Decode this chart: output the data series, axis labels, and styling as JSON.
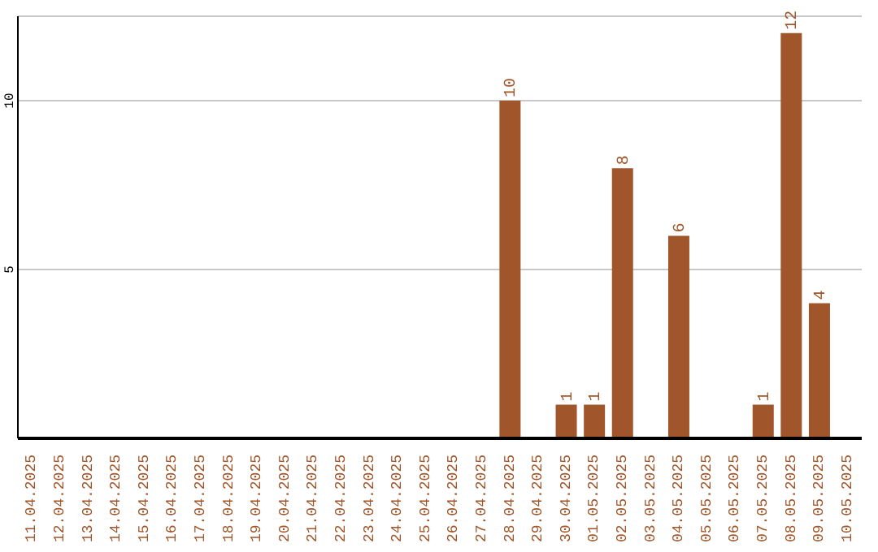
{
  "chart_data": {
    "type": "bar",
    "categories": [
      "11.04.2025",
      "12.04.2025",
      "13.04.2025",
      "14.04.2025",
      "15.04.2025",
      "16.04.2025",
      "17.04.2025",
      "18.04.2025",
      "19.04.2025",
      "20.04.2025",
      "21.04.2025",
      "22.04.2025",
      "23.04.2025",
      "24.04.2025",
      "25.04.2025",
      "26.04.2025",
      "27.04.2025",
      "28.04.2025",
      "29.04.2025",
      "30.04.2025",
      "01.05.2025",
      "02.05.2025",
      "03.05.2025",
      "04.05.2025",
      "05.05.2025",
      "06.05.2025",
      "07.05.2025",
      "08.05.2025",
      "09.05.2025",
      "10.05.2025"
    ],
    "values": [
      null,
      null,
      null,
      null,
      null,
      null,
      null,
      null,
      null,
      null,
      null,
      null,
      null,
      null,
      null,
      null,
      null,
      10,
      null,
      1,
      1,
      8,
      null,
      6,
      null,
      null,
      1,
      12,
      4,
      null
    ],
    "color": "#a0562a",
    "ylim": [
      0,
      12.5
    ],
    "yticks": [
      5,
      10
    ],
    "grid": "y",
    "data_labels": true
  }
}
